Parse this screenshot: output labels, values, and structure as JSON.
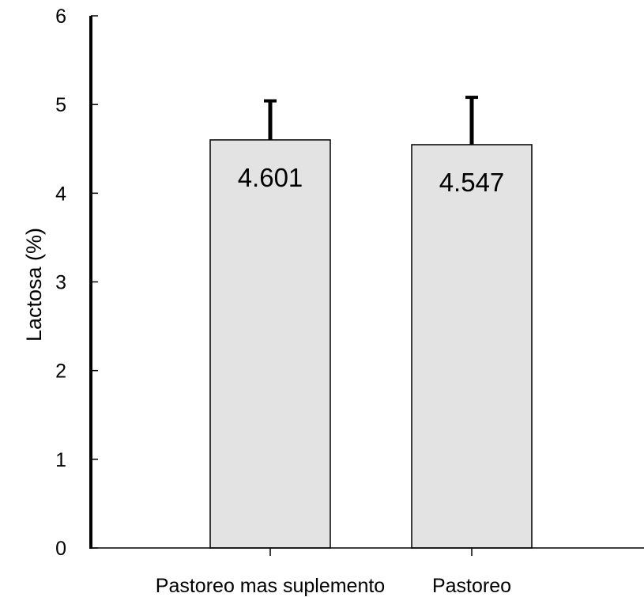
{
  "chart_data": {
    "type": "bar",
    "title": "",
    "xlabel": "",
    "ylabel": "Lactosa (%)",
    "ylim": [
      0,
      6
    ],
    "yticks": [
      0,
      1,
      2,
      3,
      4,
      5,
      6
    ],
    "categories": [
      "Pastoreo mas suplemento",
      "Pastoreo"
    ],
    "values": [
      4.601,
      4.547
    ],
    "value_labels": [
      "4.601",
      "4.547"
    ],
    "error_upper": [
      5.05,
      5.09
    ],
    "grid": false,
    "legend": "none",
    "colors": {
      "bar_fill": "#e3e3e3",
      "bar_stroke": "#000000",
      "axis": "#000000"
    }
  }
}
